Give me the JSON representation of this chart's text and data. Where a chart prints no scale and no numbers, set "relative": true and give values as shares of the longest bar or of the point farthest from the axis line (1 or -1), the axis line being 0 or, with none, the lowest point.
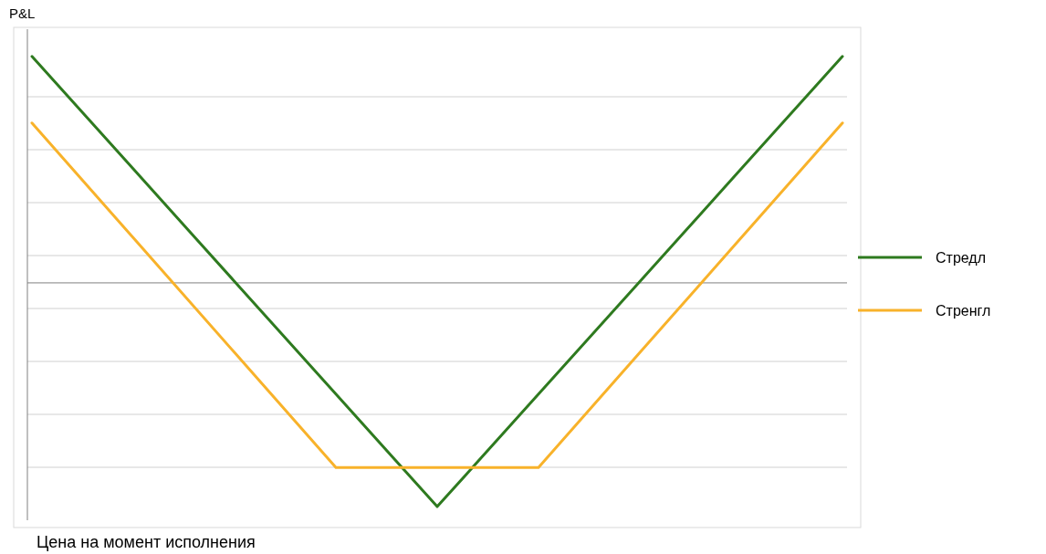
{
  "chart_data": {
    "type": "line",
    "relative": true,
    "ylabel": "P&L",
    "xlabel": "Цена на момент исполнения",
    "categories": [
      null,
      null,
      null,
      null,
      null,
      null,
      null,
      null,
      null
    ],
    "series": [
      {
        "name": "Стредл",
        "color": "#2e7a1f",
        "values": [
          1,
          0.503,
          0.006,
          -0.491,
          -0.988,
          -0.491,
          0.006,
          0.503,
          1
        ]
      },
      {
        "name": "Стренгл",
        "color": "#f8b22a",
        "values": [
          0.706,
          0.199,
          -0.308,
          -0.815,
          -0.815,
          -0.815,
          -0.308,
          0.199,
          0.706
        ]
      }
    ],
    "grid": "y",
    "legend": "right",
    "marker": "none",
    "line_style": "solid"
  }
}
